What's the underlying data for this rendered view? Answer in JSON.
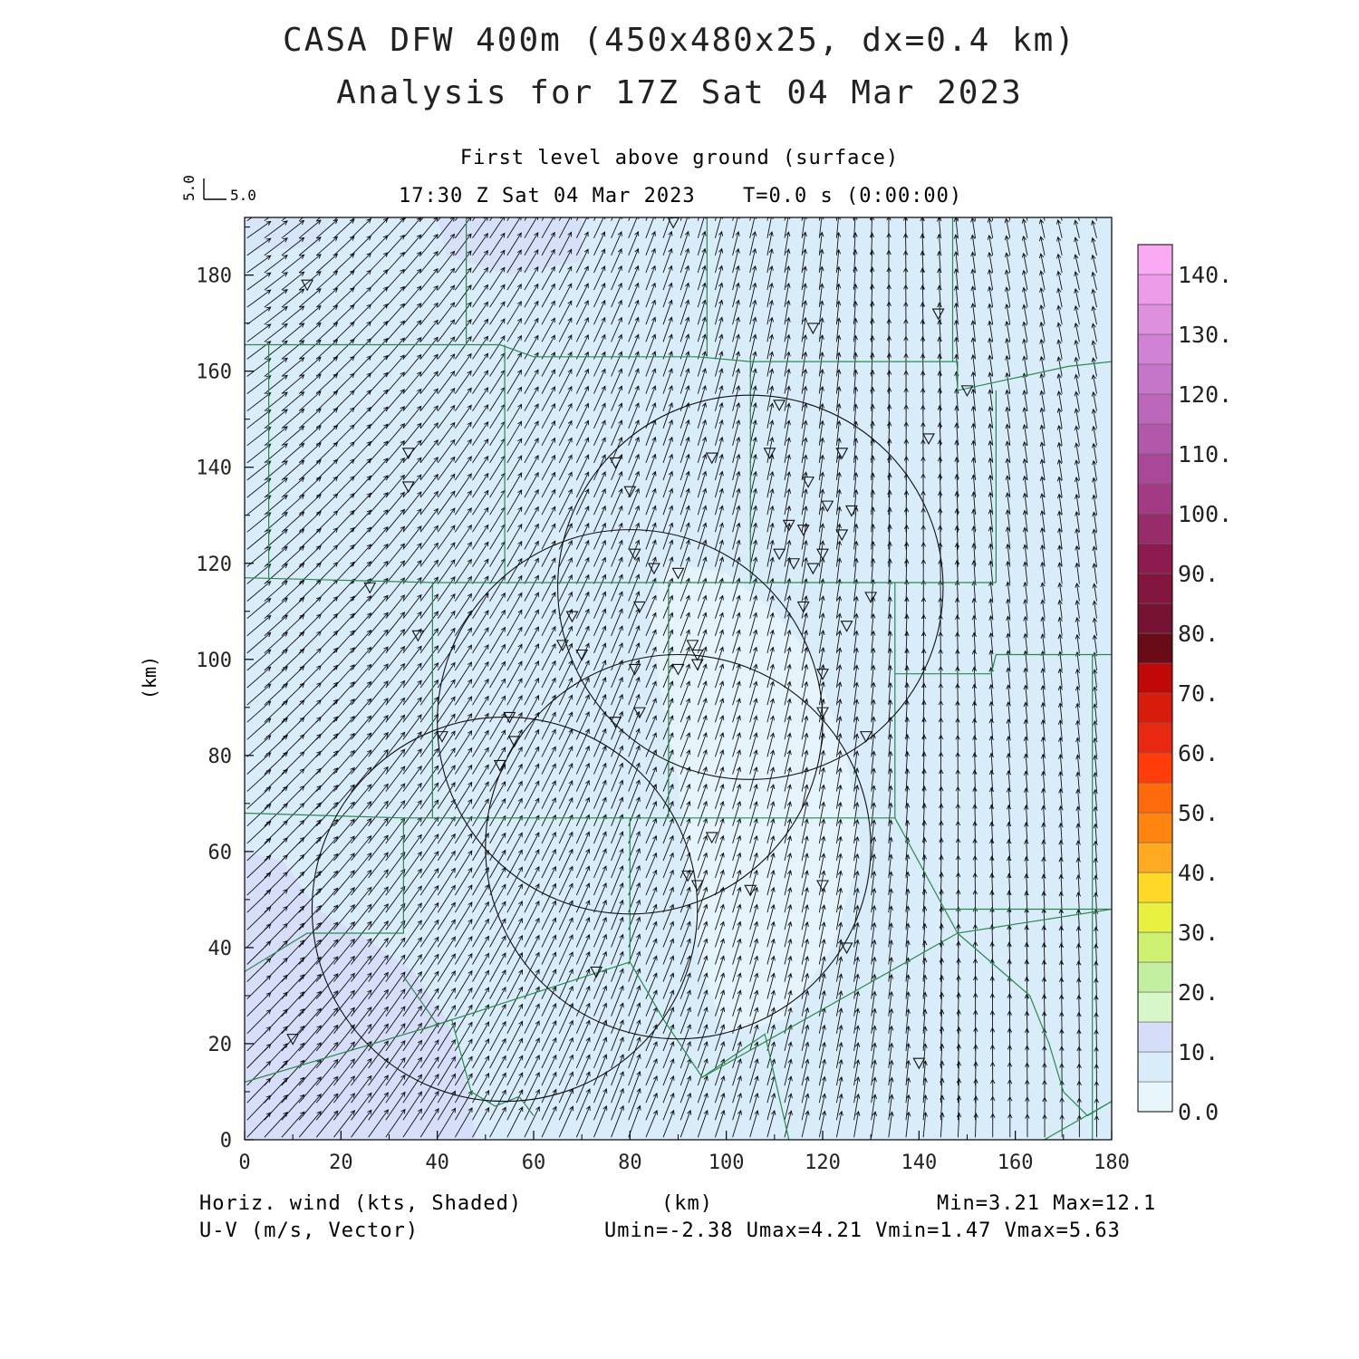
{
  "chart_data": {
    "type": "vector-field",
    "title": "CASA DFW 400m (450x480x25, dx=0.4 km)",
    "subtitle": "Analysis for 17Z Sat 04 Mar 2023",
    "level": "First level above ground (surface)",
    "valid_time": "17:30 Z Sat 04 Mar 2023",
    "forecast_time": "T=0.0 s (0:00:00)",
    "xlabel": "(km)",
    "ylabel": "(km)",
    "xlim": [
      0,
      180
    ],
    "ylim": [
      0,
      192
    ],
    "x_ticks": [
      0,
      20,
      40,
      60,
      80,
      100,
      120,
      140,
      160,
      180
    ],
    "y_ticks": [
      0,
      20,
      40,
      60,
      80,
      100,
      120,
      140,
      160,
      180
    ],
    "reference_vector": {
      "u_label": "5.0",
      "v_label": "5.0"
    },
    "colorbar": {
      "labels": [
        "0.0",
        "10.",
        "20.",
        "30.",
        "40.",
        "50.",
        "60.",
        "70.",
        "80.",
        "90.",
        "100.",
        "110.",
        "120.",
        "130.",
        "140."
      ],
      "colors": [
        "#e8f6fc",
        "#d8ecfa",
        "#d6ddf8",
        "#d6f8c8",
        "#c2f0a0",
        "#cdf070",
        "#e8f040",
        "#ffd828",
        "#ffaa20",
        "#ff8410",
        "#ff6a0a",
        "#ff3c0a",
        "#e82810",
        "#d81c0c",
        "#c00808",
        "#6a0c18",
        "#761232",
        "#82163e",
        "#8c1c50",
        "#982c6a",
        "#a23a84",
        "#aa4898",
        "#b258aa",
        "#bc68ba",
        "#c676c8",
        "#d082d4",
        "#dc90de",
        "#ec9ce8",
        "#faaaf2"
      ]
    },
    "field": {
      "name": "Horiz. wind (kts, Shaded)",
      "min": "3.21",
      "max": "12.1",
      "shading_bands_kts": [
        {
          "from": 0,
          "to": 5,
          "color": "#e8f6fc"
        },
        {
          "from": 5,
          "to": 10,
          "color": "#d8ecfa"
        },
        {
          "from": 10,
          "to": 15,
          "color": "#d6ddf8"
        }
      ]
    },
    "vectors": {
      "name": "U-V (m/s, Vector)",
      "umin": "-2.38",
      "umax": "4.21",
      "vmin": "1.47",
      "vmax": "5.63",
      "grid_spacing_km": [
        3.6,
        3.6
      ]
    },
    "radar_coverage_circles_km": [
      {
        "center": [
          105,
          115
        ],
        "radius": 40
      },
      {
        "center": [
          80,
          87
        ],
        "radius": 40
      },
      {
        "center": [
          90,
          61
        ],
        "radius": 40
      },
      {
        "center": [
          54,
          48
        ],
        "radius": 40
      }
    ],
    "stations_km": [
      [
        89,
        191
      ],
      [
        13,
        178
      ],
      [
        118,
        169
      ],
      [
        144,
        172
      ],
      [
        150,
        156
      ],
      [
        111,
        153
      ],
      [
        142,
        146
      ],
      [
        34,
        143
      ],
      [
        77,
        141
      ],
      [
        97,
        142
      ],
      [
        109,
        143
      ],
      [
        124,
        143
      ],
      [
        34,
        136
      ],
      [
        80,
        135
      ],
      [
        117,
        137
      ],
      [
        121,
        132
      ],
      [
        126,
        131
      ],
      [
        113,
        128
      ],
      [
        116,
        127
      ],
      [
        124,
        126
      ],
      [
        111,
        122
      ],
      [
        114,
        120
      ],
      [
        118,
        119
      ],
      [
        120,
        122
      ],
      [
        81,
        122
      ],
      [
        85,
        119
      ],
      [
        90,
        118
      ],
      [
        26,
        115
      ],
      [
        130,
        113
      ],
      [
        116,
        111
      ],
      [
        82,
        111
      ],
      [
        36,
        105
      ],
      [
        68,
        109
      ],
      [
        125,
        107
      ],
      [
        66,
        103
      ],
      [
        70,
        101
      ],
      [
        93,
        103
      ],
      [
        94,
        101
      ],
      [
        94,
        99
      ],
      [
        90,
        98
      ],
      [
        81,
        98
      ],
      [
        120,
        97
      ],
      [
        82,
        89
      ],
      [
        120,
        89
      ],
      [
        77,
        87
      ],
      [
        55,
        88
      ],
      [
        56,
        83
      ],
      [
        53,
        78
      ],
      [
        41,
        84
      ],
      [
        129,
        84
      ],
      [
        97,
        63
      ],
      [
        92,
        55
      ],
      [
        94,
        53
      ],
      [
        120,
        53
      ],
      [
        105,
        52
      ],
      [
        125,
        40
      ],
      [
        73,
        35
      ],
      [
        10,
        21
      ],
      [
        140,
        16
      ]
    ],
    "county_boundaries_km": [
      [
        [
          0,
          165.5
        ],
        [
          53,
          165.5
        ],
        [
          60,
          163
        ],
        [
          94,
          163
        ],
        [
          105,
          162
        ],
        [
          148,
          162
        ],
        [
          148,
          156
        ],
        [
          171,
          161
        ],
        [
          180,
          162
        ]
      ],
      [
        [
          46,
          192
        ],
        [
          46,
          165.5
        ]
      ],
      [
        [
          96,
          192
        ],
        [
          96,
          163
        ]
      ],
      [
        [
          105,
          163
        ],
        [
          105,
          116
        ]
      ],
      [
        [
          147,
          192
        ],
        [
          147,
          162
        ]
      ],
      [
        [
          5,
          165.5
        ],
        [
          5,
          117
        ]
      ],
      [
        [
          54,
          165.5
        ],
        [
          54,
          117
        ]
      ],
      [
        [
          156,
          156
        ],
        [
          156,
          116
        ]
      ],
      [
        [
          0,
          117
        ],
        [
          39,
          116
        ],
        [
          60,
          116
        ],
        [
          120,
          116
        ],
        [
          156,
          116
        ]
      ],
      [
        [
          39,
          116
        ],
        [
          39,
          67
        ]
      ],
      [
        [
          88,
          116
        ],
        [
          88,
          67
        ]
      ],
      [
        [
          135,
          116
        ],
        [
          135,
          67
        ]
      ],
      [
        [
          135,
          97
        ],
        [
          155,
          97
        ],
        [
          156,
          101
        ],
        [
          180,
          101
        ]
      ],
      [
        [
          176,
          101
        ],
        [
          176,
          0
        ]
      ],
      [
        [
          0,
          68
        ],
        [
          33,
          67
        ],
        [
          80,
          67
        ],
        [
          135,
          67
        ]
      ],
      [
        [
          33,
          67
        ],
        [
          33,
          43
        ],
        [
          13,
          43
        ],
        [
          0,
          35
        ]
      ],
      [
        [
          80,
          67
        ],
        [
          80,
          37
        ],
        [
          40,
          24
        ],
        [
          33,
          34
        ]
      ],
      [
        [
          0,
          12
        ],
        [
          40,
          24
        ],
        [
          37,
          23
        ],
        [
          43,
          25
        ],
        [
          47,
          10
        ],
        [
          52,
          7
        ],
        [
          57,
          9
        ],
        [
          60,
          5
        ]
      ],
      [
        [
          80,
          37
        ],
        [
          87,
          25
        ],
        [
          95,
          13
        ],
        [
          108,
          22
        ],
        [
          113,
          0
        ]
      ],
      [
        [
          135,
          67
        ],
        [
          148,
          43
        ],
        [
          180,
          48
        ]
      ],
      [
        [
          145,
          48
        ],
        [
          180,
          48
        ]
      ],
      [
        [
          148,
          43
        ],
        [
          95,
          13
        ]
      ],
      [
        [
          148,
          43
        ],
        [
          163,
          30
        ],
        [
          167,
          20
        ],
        [
          170,
          10
        ],
        [
          175,
          5
        ],
        [
          180,
          8
        ]
      ],
      [
        [
          180,
          8
        ],
        [
          166,
          0
        ]
      ]
    ]
  }
}
